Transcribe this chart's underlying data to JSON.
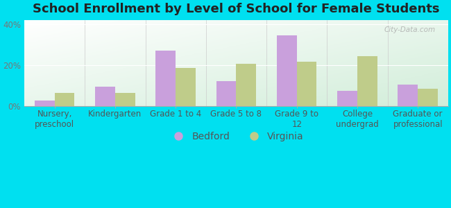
{
  "title": "School Enrollment by Level of School for Female Students",
  "categories": [
    "Nursery,\npreschool",
    "Kindergarten",
    "Grade 1 to 4",
    "Grade 5 to 8",
    "Grade 9 to\n12",
    "College\nundergrad",
    "Graduate or\nprofessional"
  ],
  "bedford": [
    2.5,
    9.5,
    27.0,
    12.0,
    34.5,
    7.5,
    10.5
  ],
  "virginia": [
    6.5,
    6.5,
    18.5,
    20.5,
    21.5,
    24.5,
    8.5
  ],
  "bedford_color": "#c9a0dc",
  "virginia_color": "#bfcc8a",
  "background_outer": "#00e0f0",
  "ylim": [
    0,
    42
  ],
  "yticks": [
    0,
    20,
    40
  ],
  "ytick_labels": [
    "0%",
    "20%",
    "40%"
  ],
  "bar_width": 0.33,
  "legend_labels": [
    "Bedford",
    "Virginia"
  ],
  "title_fontsize": 13,
  "tick_fontsize": 8.5,
  "legend_fontsize": 10
}
